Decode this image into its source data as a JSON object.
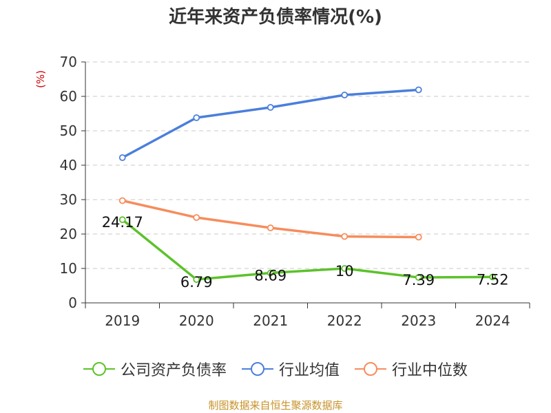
{
  "chart_data": {
    "type": "line",
    "title": "近年来资产负债率情况(%)",
    "ylabel": "(%)",
    "xlabel": "",
    "categories": [
      "2019",
      "2020",
      "2021",
      "2022",
      "2023",
      "2024"
    ],
    "ylim": [
      0,
      70
    ],
    "yticks": [
      0,
      10,
      20,
      30,
      40,
      50,
      60,
      70
    ],
    "grid": true,
    "legend_position": "bottom",
    "series": [
      {
        "name": "公司资产负债率",
        "color": "#5cc22a",
        "values": [
          24.17,
          6.79,
          8.69,
          10,
          7.39,
          7.52
        ],
        "labels": [
          "24.17",
          "6.79",
          "8.69",
          "10",
          "7.39",
          "7.52"
        ]
      },
      {
        "name": "行业均值",
        "color": "#4a7fdc",
        "values": [
          42.2,
          53.8,
          56.8,
          60.4,
          61.9,
          null
        ]
      },
      {
        "name": "行业中位数",
        "color": "#f78c5c",
        "values": [
          29.7,
          24.8,
          21.8,
          19.3,
          19.1,
          null
        ]
      }
    ]
  },
  "source": "制图数据来自恒生聚源数据库"
}
